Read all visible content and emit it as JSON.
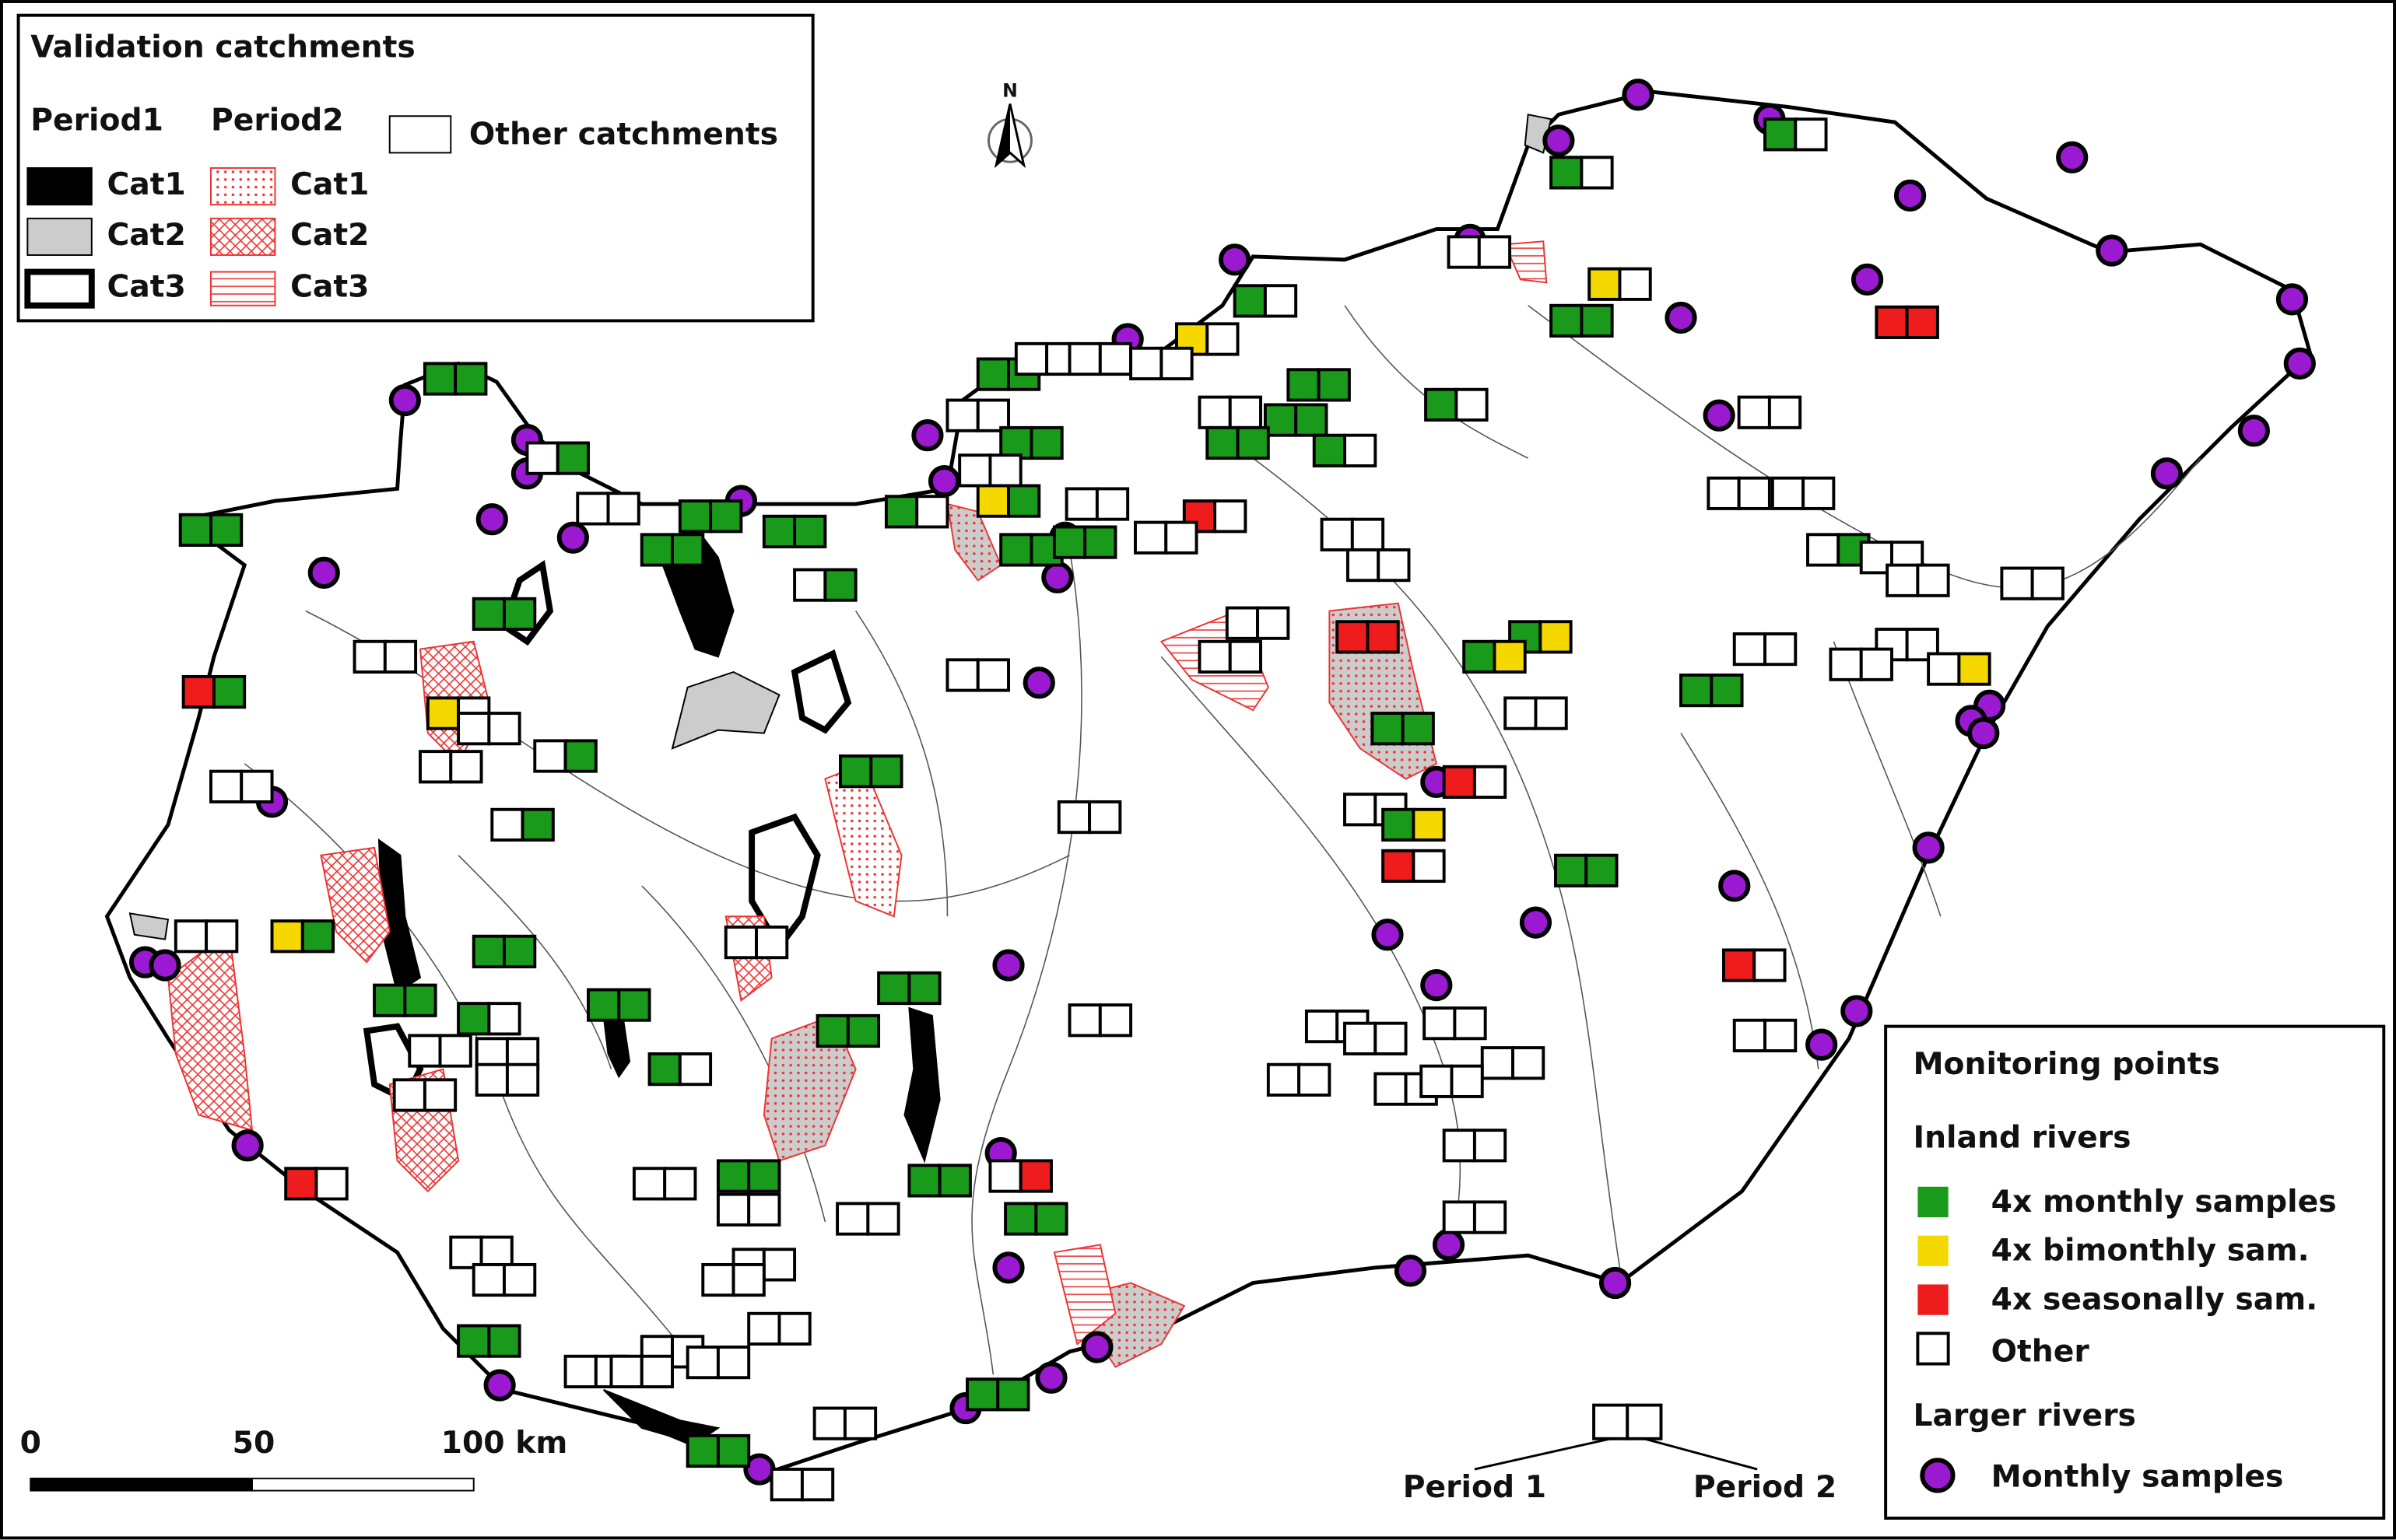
{
  "validation_legend": {
    "title": "Validation catchments",
    "period1": {
      "heading": "Period1",
      "items": [
        "Cat1",
        "Cat2",
        "Cat3"
      ]
    },
    "period2": {
      "heading": "Period2",
      "items": [
        "Cat1",
        "Cat2",
        "Cat3"
      ]
    },
    "other": "Other catchments"
  },
  "monitoring_legend": {
    "title": "Monitoring points",
    "inland_heading": "Inland rivers",
    "inland_items": [
      "4x monthly samples",
      "4x bimonthly sam.",
      "4x seasonally sam.",
      "Other"
    ],
    "larger_heading": "Larger rivers",
    "larger_items": [
      "Monthly samples"
    ]
  },
  "scale_bar": {
    "labels": [
      "0",
      "50",
      "100 km"
    ]
  },
  "period_key": {
    "labels": [
      "Period 1",
      "Period 2"
    ]
  },
  "north_arrow": "N"
}
